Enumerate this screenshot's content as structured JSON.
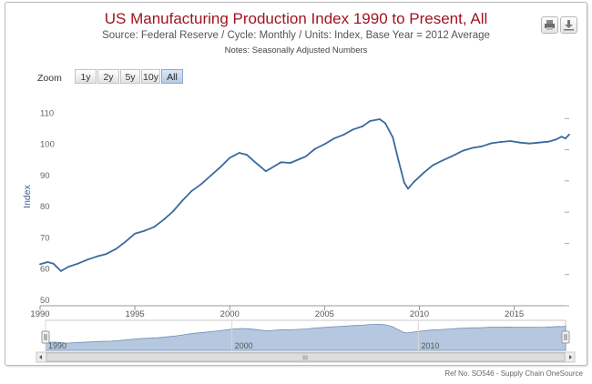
{
  "title": "US Manufacturing Production Index 1990 to Present, All",
  "subtitle": "Source: Federal Reserve / Cycle: Monthly / Units: Index, Base Year = 2012 Average",
  "notes": "Notes: Seasonally Adjusted Numbers",
  "toolbar": {
    "zoom_label": "Zoom",
    "buttons": [
      "1y",
      "2y",
      "5y",
      "10y",
      "All"
    ],
    "active": "All"
  },
  "export_icons": [
    "print-icon",
    "download-icon"
  ],
  "navigator": {
    "labels": [
      "1990",
      "2000",
      "2010"
    ],
    "scroll_symbol": "III"
  },
  "footer": "Ref No. SO546 - Supply Chain OneSource",
  "colors": {
    "title": "#a0141e",
    "line": "#3a6a9e",
    "navigator_fill": "#b5c8df"
  },
  "chart_data": {
    "type": "line",
    "title": "US Manufacturing Production Index 1990 to Present, All",
    "xlabel": "",
    "ylabel": "Index",
    "x_ticks": [
      "1990",
      "1995",
      "2000",
      "2005",
      "2010",
      "2015"
    ],
    "y_ticks": [
      "50",
      "60",
      "70",
      "80",
      "90",
      "100",
      "110"
    ],
    "xlim": [
      1990,
      2017.9
    ],
    "ylim": [
      50,
      113
    ],
    "grid": false,
    "series": [
      {
        "values": [
          [
            1990.0,
            63.3
          ],
          [
            1990.4,
            64.0
          ],
          [
            1990.7,
            63.5
          ],
          [
            1991.1,
            61.1
          ],
          [
            1991.5,
            62.5
          ],
          [
            1992.0,
            63.5
          ],
          [
            1992.5,
            64.8
          ],
          [
            1993.0,
            65.8
          ],
          [
            1993.5,
            66.6
          ],
          [
            1994.0,
            68.2
          ],
          [
            1994.5,
            70.5
          ],
          [
            1995.0,
            73.1
          ],
          [
            1995.5,
            74.0
          ],
          [
            1996.0,
            75.2
          ],
          [
            1996.5,
            77.5
          ],
          [
            1997.0,
            80.2
          ],
          [
            1997.5,
            83.7
          ],
          [
            1998.0,
            86.8
          ],
          [
            1998.5,
            89.0
          ],
          [
            1999.0,
            91.7
          ],
          [
            1999.5,
            94.4
          ],
          [
            2000.0,
            97.4
          ],
          [
            2000.5,
            99.0
          ],
          [
            2000.9,
            98.4
          ],
          [
            2001.3,
            96.2
          ],
          [
            2001.7,
            94.2
          ],
          [
            2001.9,
            93.1
          ],
          [
            2002.3,
            94.5
          ],
          [
            2002.7,
            96.0
          ],
          [
            2003.2,
            95.8
          ],
          [
            2003.6,
            96.8
          ],
          [
            2004.0,
            97.8
          ],
          [
            2004.5,
            100.3
          ],
          [
            2005.0,
            101.8
          ],
          [
            2005.5,
            103.6
          ],
          [
            2006.0,
            104.8
          ],
          [
            2006.5,
            106.5
          ],
          [
            2007.0,
            107.5
          ],
          [
            2007.4,
            109.2
          ],
          [
            2007.9,
            109.8
          ],
          [
            2008.2,
            108.5
          ],
          [
            2008.6,
            104.0
          ],
          [
            2008.9,
            96.5
          ],
          [
            2009.2,
            89.5
          ],
          [
            2009.4,
            87.5
          ],
          [
            2009.7,
            89.6
          ],
          [
            2010.2,
            92.5
          ],
          [
            2010.7,
            95.0
          ],
          [
            2011.2,
            96.5
          ],
          [
            2011.7,
            97.9
          ],
          [
            2012.3,
            99.7
          ],
          [
            2012.8,
            100.6
          ],
          [
            2013.3,
            101.1
          ],
          [
            2013.8,
            102.1
          ],
          [
            2014.3,
            102.5
          ],
          [
            2014.8,
            102.8
          ],
          [
            2015.3,
            102.3
          ],
          [
            2015.8,
            102.0
          ],
          [
            2016.3,
            102.3
          ],
          [
            2016.8,
            102.6
          ],
          [
            2017.2,
            103.3
          ],
          [
            2017.5,
            104.2
          ],
          [
            2017.7,
            103.6
          ],
          [
            2017.9,
            104.9
          ]
        ]
      }
    ]
  }
}
